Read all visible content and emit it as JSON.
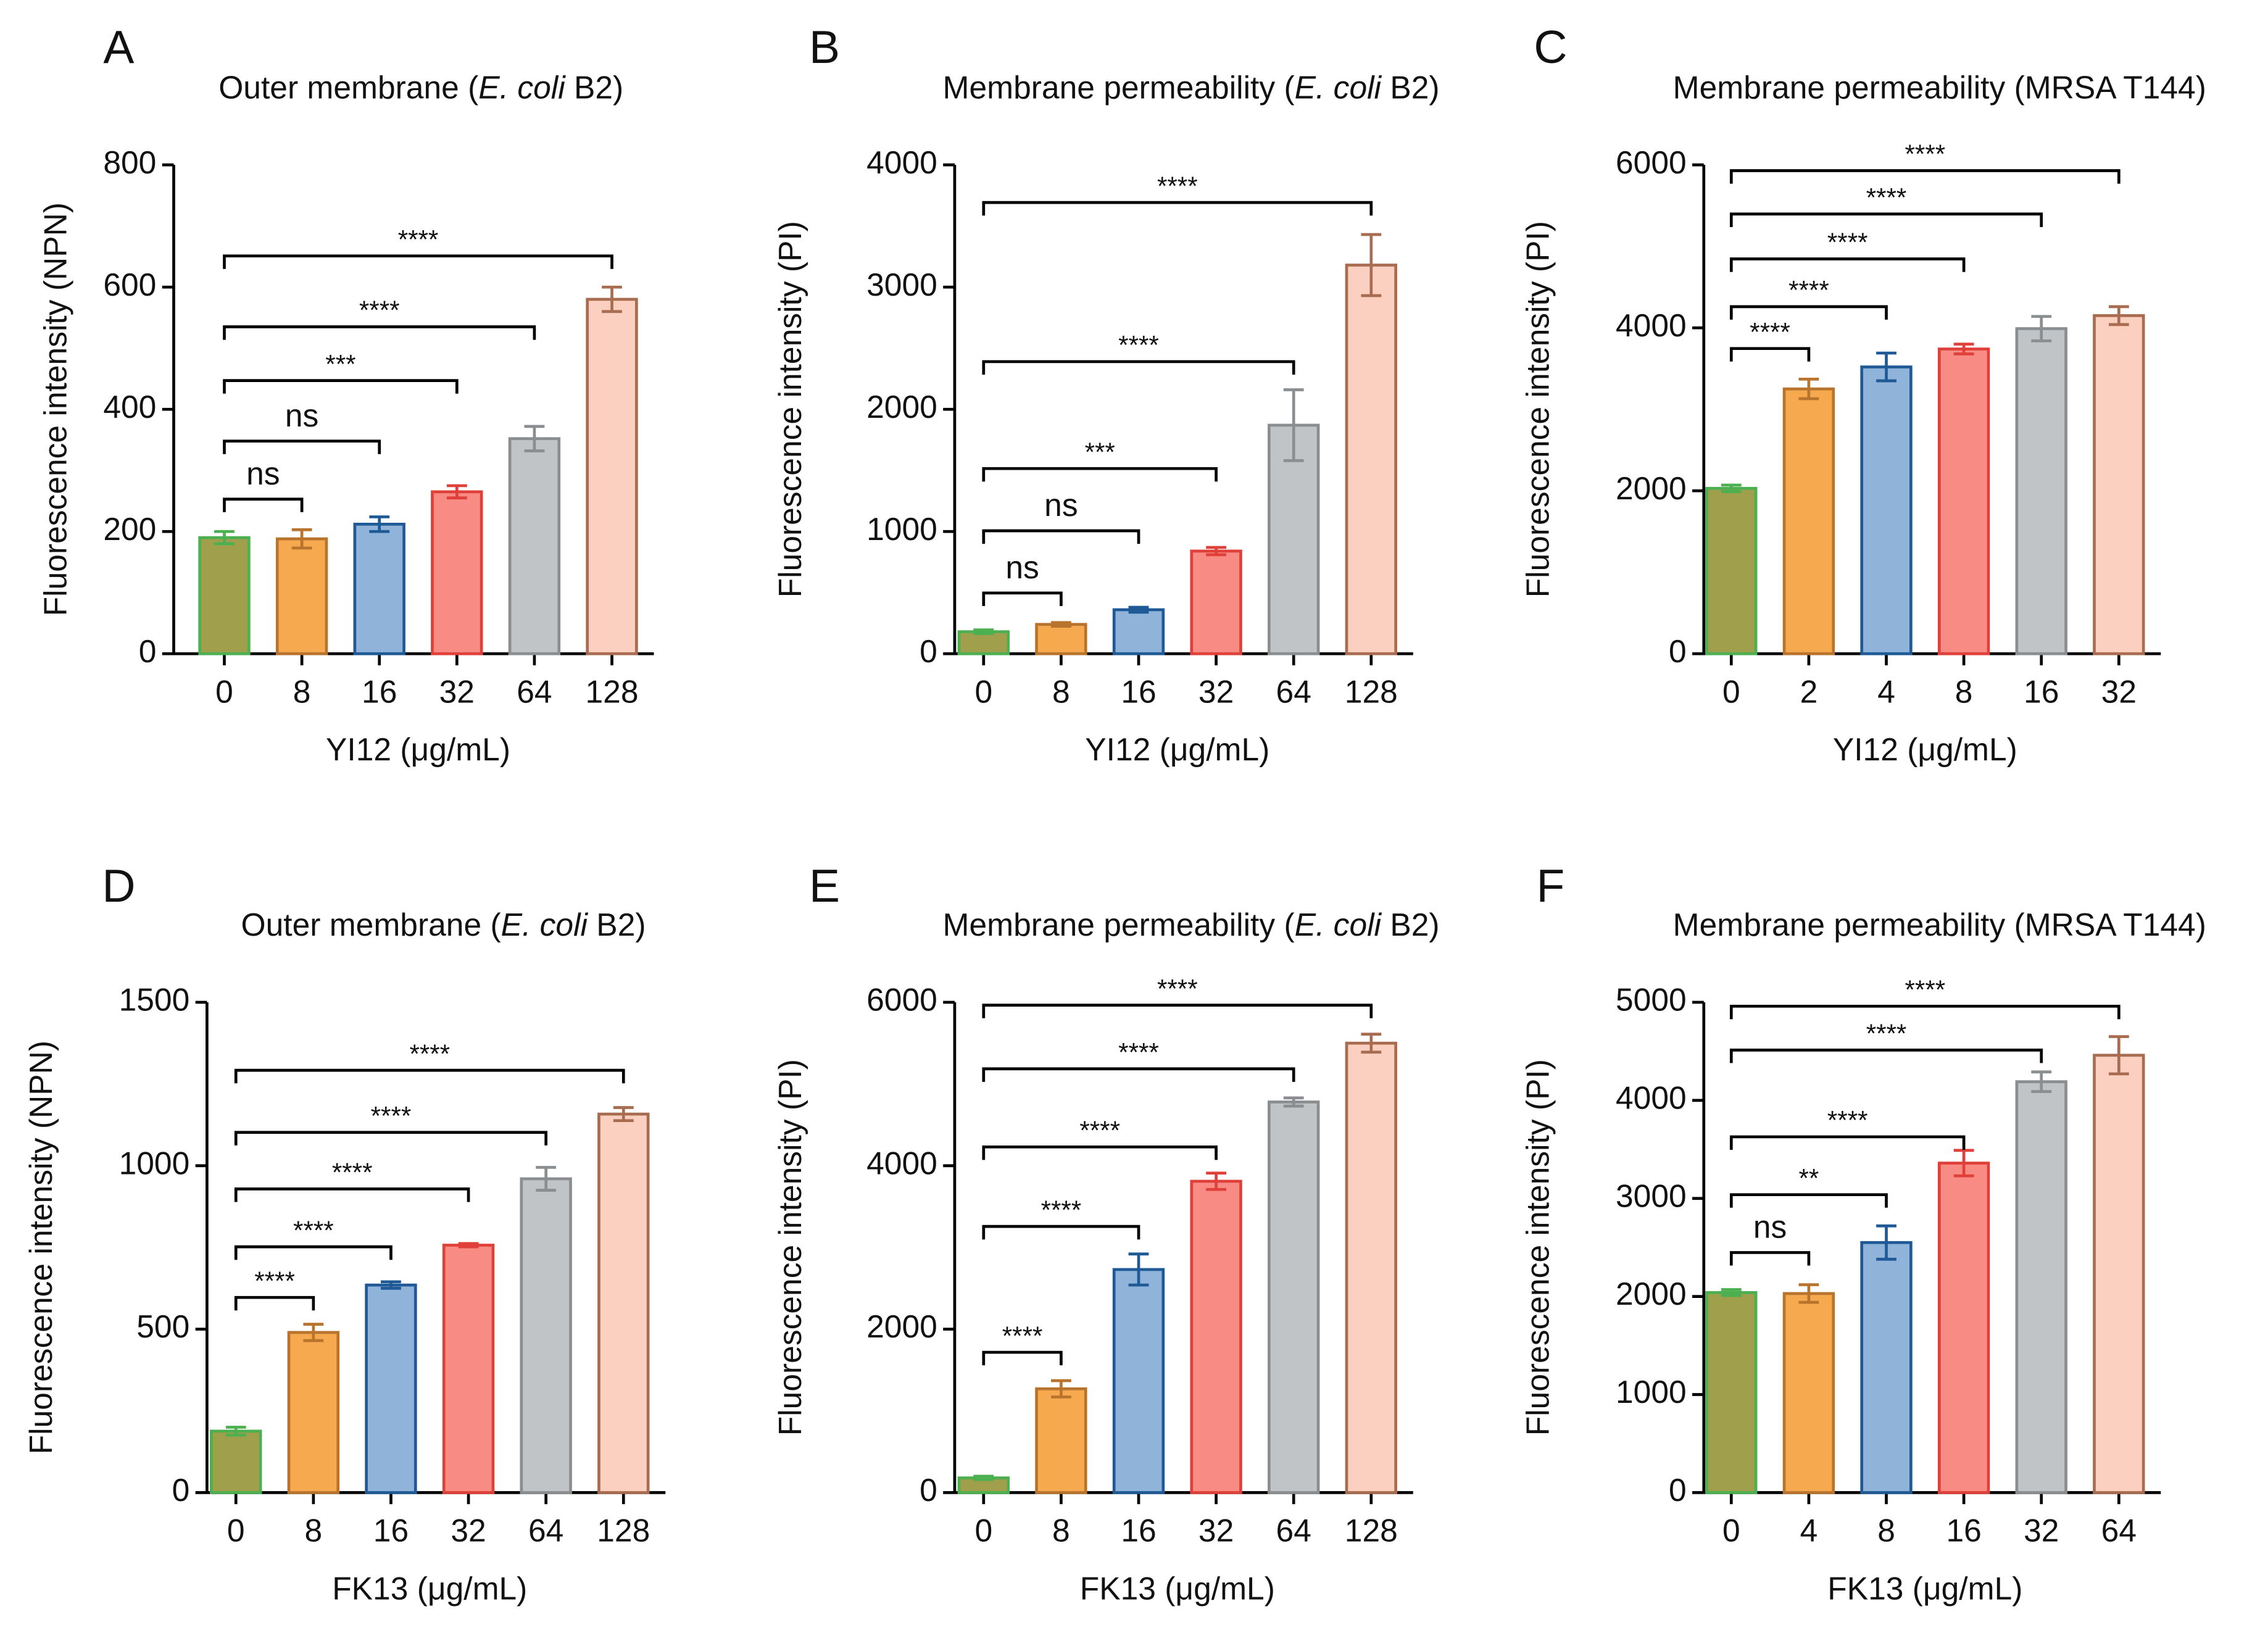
{
  "chart_data": [
    {
      "type": "bar",
      "panel": "A",
      "title_parts": [
        {
          "text": "Outer membrane (",
          "italic": false
        },
        {
          "text": "E. coli",
          "italic": true
        },
        {
          "text": " B2)",
          "italic": false
        }
      ],
      "x_label": "YI12 (μg/mL)",
      "y_label": "Fluorescence intensity (NPN)",
      "categories": [
        "0",
        "8",
        "16",
        "32",
        "64",
        "128"
      ],
      "values": [
        190,
        188,
        212,
        265,
        352,
        580
      ],
      "errors": [
        10,
        15,
        12,
        10,
        20,
        20
      ],
      "fill_colors": [
        "#a0a04c",
        "#f7a94f",
        "#8fb3d9",
        "#f88c84",
        "#c0c4c6",
        "#fcd0c0"
      ],
      "edge_colors": [
        "#4caf50",
        "#b8742c",
        "#1f5a96",
        "#e0403a",
        "#8a8e90",
        "#a86c50"
      ],
      "ylim": [
        0,
        800
      ],
      "yticks": [
        0,
        200,
        400,
        600,
        800
      ],
      "grid": false,
      "brackets": [
        {
          "from": 0,
          "to": 1,
          "y": 253,
          "label": "ns"
        },
        {
          "from": 0,
          "to": 2,
          "y": 348,
          "label": "ns"
        },
        {
          "from": 0,
          "to": 3,
          "y": 447,
          "label": "***"
        },
        {
          "from": 0,
          "to": 4,
          "y": 535,
          "label": "****"
        },
        {
          "from": 0,
          "to": 5,
          "y": 651,
          "label": "****"
        }
      ]
    },
    {
      "type": "bar",
      "panel": "B",
      "title_parts": [
        {
          "text": "Membrane permeability (",
          "italic": false
        },
        {
          "text": "E. coli",
          "italic": true
        },
        {
          "text": " B2)",
          "italic": false
        }
      ],
      "x_label": "YI12 (μg/mL)",
      "y_label": "Fluorescence intensity (PI)",
      "categories": [
        "0",
        "8",
        "16",
        "32",
        "64",
        "128"
      ],
      "values": [
        180,
        240,
        360,
        840,
        1870,
        3180
      ],
      "errors": [
        15,
        15,
        20,
        30,
        290,
        250
      ],
      "fill_colors": [
        "#a0a04c",
        "#f7a94f",
        "#8fb3d9",
        "#f88c84",
        "#c0c4c6",
        "#fcd0c0"
      ],
      "edge_colors": [
        "#4caf50",
        "#b8742c",
        "#1f5a96",
        "#e0403a",
        "#8a8e90",
        "#a86c50"
      ],
      "ylim": [
        0,
        4000
      ],
      "yticks": [
        0,
        1000,
        2000,
        3000,
        4000
      ],
      "grid": false,
      "brackets": [
        {
          "from": 0,
          "to": 1,
          "y": 497,
          "label": "ns"
        },
        {
          "from": 0,
          "to": 2,
          "y": 1006,
          "label": "ns"
        },
        {
          "from": 0,
          "to": 3,
          "y": 1515,
          "label": "***"
        },
        {
          "from": 0,
          "to": 4,
          "y": 2390,
          "label": "****"
        },
        {
          "from": 0,
          "to": 5,
          "y": 3692,
          "label": "****"
        }
      ]
    },
    {
      "type": "bar",
      "panel": "C",
      "title_parts": [
        {
          "text": "Membrane permeability (MRSA T144)",
          "italic": false
        }
      ],
      "x_label": "YI12 (μg/mL)",
      "y_label": "Fluorescence intensity (PI)",
      "categories": [
        "0",
        "2",
        "4",
        "8",
        "16",
        "32"
      ],
      "values": [
        2030,
        3250,
        3520,
        3740,
        3990,
        4150
      ],
      "errors": [
        40,
        120,
        170,
        60,
        150,
        110
      ],
      "fill_colors": [
        "#a0a04c",
        "#f7a94f",
        "#8fb3d9",
        "#f88c84",
        "#c0c4c6",
        "#fcd0c0"
      ],
      "edge_colors": [
        "#4caf50",
        "#b8742c",
        "#1f5a96",
        "#e0403a",
        "#8a8e90",
        "#a86c50"
      ],
      "ylim": [
        0,
        6000
      ],
      "yticks": [
        0,
        2000,
        4000,
        6000
      ],
      "grid": false,
      "brackets": [
        {
          "from": 0,
          "to": 1,
          "y": 3746,
          "label": "****"
        },
        {
          "from": 0,
          "to": 2,
          "y": 4260,
          "label": "****"
        },
        {
          "from": 0,
          "to": 3,
          "y": 4846,
          "label": "****"
        },
        {
          "from": 0,
          "to": 4,
          "y": 5397,
          "label": "****"
        },
        {
          "from": 0,
          "to": 5,
          "y": 5929,
          "label": "****"
        }
      ]
    },
    {
      "type": "bar",
      "panel": "D",
      "title_parts": [
        {
          "text": "Outer membrane (",
          "italic": false
        },
        {
          "text": "E. coli",
          "italic": true
        },
        {
          "text": " B2)",
          "italic": false
        }
      ],
      "x_label": "FK13 (μg/mL)",
      "y_label": "Fluorescence intensity (NPN)",
      "categories": [
        "0",
        "8",
        "16",
        "32",
        "64",
        "128"
      ],
      "values": [
        188,
        490,
        635,
        757,
        960,
        1158
      ],
      "errors": [
        12,
        25,
        10,
        5,
        35,
        20
      ],
      "fill_colors": [
        "#a0a04c",
        "#f7a94f",
        "#8fb3d9",
        "#f88c84",
        "#c0c4c6",
        "#fcd0c0"
      ],
      "edge_colors": [
        "#4caf50",
        "#b8742c",
        "#1f5a96",
        "#e0403a",
        "#8a8e90",
        "#a86c50"
      ],
      "ylim": [
        0,
        1500
      ],
      "yticks": [
        0,
        500,
        1000,
        1500
      ],
      "grid": false,
      "brackets": [
        {
          "from": 0,
          "to": 1,
          "y": 597,
          "label": "****"
        },
        {
          "from": 0,
          "to": 2,
          "y": 752,
          "label": "****"
        },
        {
          "from": 0,
          "to": 3,
          "y": 929,
          "label": "****"
        },
        {
          "from": 0,
          "to": 4,
          "y": 1102,
          "label": "****"
        },
        {
          "from": 0,
          "to": 5,
          "y": 1292,
          "label": "****"
        }
      ]
    },
    {
      "type": "bar",
      "panel": "E",
      "title_parts": [
        {
          "text": "Membrane permeability (",
          "italic": false
        },
        {
          "text": "E. coli",
          "italic": true
        },
        {
          "text": " B2)",
          "italic": false
        }
      ],
      "x_label": "FK13 (μg/mL)",
      "y_label": "Fluorescence intensity (PI)",
      "categories": [
        "0",
        "8",
        "16",
        "32",
        "64",
        "128"
      ],
      "values": [
        180,
        1270,
        2730,
        3810,
        4780,
        5500
      ],
      "errors": [
        20,
        100,
        190,
        100,
        50,
        110
      ],
      "fill_colors": [
        "#a0a04c",
        "#f7a94f",
        "#8fb3d9",
        "#f88c84",
        "#c0c4c6",
        "#fcd0c0"
      ],
      "edge_colors": [
        "#4caf50",
        "#b8742c",
        "#1f5a96",
        "#e0403a",
        "#8a8e90",
        "#a86c50"
      ],
      "ylim": [
        0,
        6000
      ],
      "yticks": [
        0,
        2000,
        4000,
        6000
      ],
      "grid": false,
      "brackets": [
        {
          "from": 0,
          "to": 1,
          "y": 1717,
          "label": "****"
        },
        {
          "from": 0,
          "to": 2,
          "y": 3257,
          "label": "****"
        },
        {
          "from": 0,
          "to": 3,
          "y": 4230,
          "label": "****"
        },
        {
          "from": 0,
          "to": 4,
          "y": 5186,
          "label": "****"
        },
        {
          "from": 0,
          "to": 5,
          "y": 5965,
          "label": "****"
        }
      ]
    },
    {
      "type": "bar",
      "panel": "F",
      "title_parts": [
        {
          "text": "Membrane permeability (MRSA T144)",
          "italic": false
        }
      ],
      "x_label": "FK13 (μg/mL)",
      "y_label": "Fluorescence intensity (PI)",
      "categories": [
        "0",
        "4",
        "8",
        "16",
        "32",
        "64"
      ],
      "values": [
        2040,
        2030,
        2550,
        3360,
        4190,
        4460
      ],
      "errors": [
        30,
        90,
        170,
        130,
        100,
        190
      ],
      "fill_colors": [
        "#a0a04c",
        "#f7a94f",
        "#8fb3d9",
        "#f88c84",
        "#c0c4c6",
        "#fcd0c0"
      ],
      "edge_colors": [
        "#4caf50",
        "#b8742c",
        "#1f5a96",
        "#e0403a",
        "#8a8e90",
        "#a86c50"
      ],
      "ylim": [
        0,
        5000
      ],
      "yticks": [
        0,
        1000,
        2000,
        3000,
        4000,
        5000
      ],
      "grid": false,
      "brackets": [
        {
          "from": 0,
          "to": 1,
          "y": 2448,
          "label": "ns"
        },
        {
          "from": 0,
          "to": 2,
          "y": 3038,
          "label": "**"
        },
        {
          "from": 0,
          "to": 3,
          "y": 3628,
          "label": "****"
        },
        {
          "from": 0,
          "to": 4,
          "y": 4513,
          "label": "****"
        },
        {
          "from": 0,
          "to": 5,
          "y": 4960,
          "label": "****"
        }
      ]
    }
  ]
}
